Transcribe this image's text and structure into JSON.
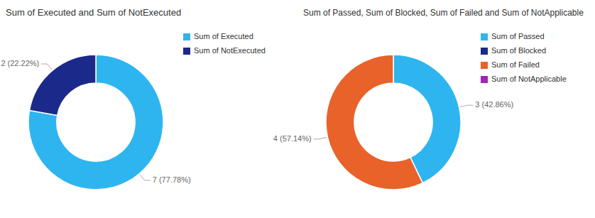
{
  "chart_data": [
    {
      "type": "donut",
      "title": "Sum of Executed and Sum of NotExecuted",
      "categories": [
        "Sum of Executed",
        "Sum of NotExecuted"
      ],
      "values": [
        7,
        2
      ],
      "colors": [
        "#2EB5F0",
        "#1B2A8A"
      ],
      "data_labels": true,
      "value_labels": [
        "7 (77.78%)",
        "2 (22.22%)"
      ],
      "legend": "right"
    },
    {
      "type": "donut",
      "title": "Sum of Passed, Sum of Blocked, Sum of Failed and Sum of NotApplicable",
      "categories": [
        "Sum of Passed",
        "Sum of Blocked",
        "Sum of Failed",
        "Sum of NotApplicable"
      ],
      "values": [
        3,
        null,
        4,
        null
      ],
      "colors": [
        "#2EB5F0",
        "#1B2A8A",
        "#E8622A",
        "#9C27B0"
      ],
      "data_labels": true,
      "value_labels": [
        "3 (42.86%)",
        null,
        "4 (57.14%)",
        null
      ],
      "legend": "right"
    }
  ]
}
